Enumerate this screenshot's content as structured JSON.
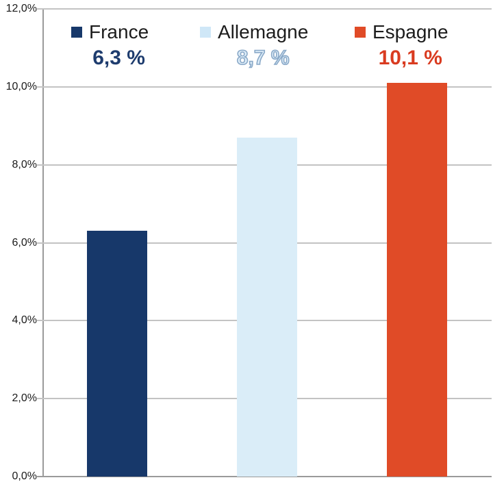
{
  "chart_data": {
    "type": "bar",
    "title": "",
    "xlabel": "",
    "ylabel": "",
    "categories": [
      "France",
      "Allemagne",
      "Espagne"
    ],
    "values": [
      6.3,
      8.7,
      10.1
    ],
    "value_labels": [
      "6,3 %",
      "8,7 %",
      "10,1 %"
    ],
    "bar_colors": [
      "#17386a",
      "#daedf8",
      "#e04b27"
    ],
    "ylim": [
      0,
      12
    ],
    "ytick_step": 2,
    "ytick_labels": [
      "0,0%",
      "2,0%",
      "4,0%",
      "6,0%",
      "8,0%",
      "10,0%",
      "12,0%"
    ],
    "grid": true,
    "legend_position": "top"
  },
  "legend": {
    "items": [
      {
        "label": "France",
        "value": "6,3 %",
        "swatch_color": "#17386a",
        "value_color": "#1e3c6e",
        "value_style": "solid"
      },
      {
        "label": "Allemagne",
        "value": "8,7 %",
        "swatch_color": "#cfe7f7",
        "value_color": "#dcecf8",
        "value_outline_color": "#8aa9c8",
        "value_style": "outline"
      },
      {
        "label": "Espagne",
        "value": "10,1 %",
        "swatch_color": "#e04b27",
        "value_color": "#d93b20",
        "value_style": "solid"
      }
    ]
  },
  "colors": {
    "gridline": "#c3c3c3",
    "axis": "#9a9a9a",
    "tick_text": "#1a1a1a"
  }
}
